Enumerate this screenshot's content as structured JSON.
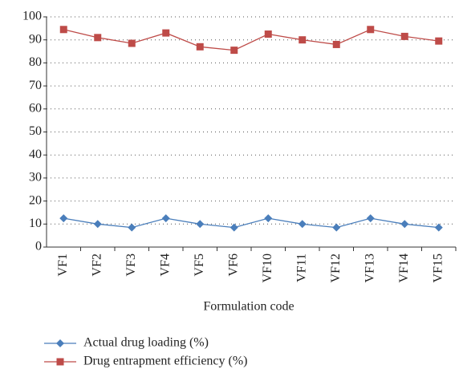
{
  "chart_data": {
    "type": "line",
    "x_label": "Formulation code",
    "categories": [
      "VF1",
      "VF2",
      "VF3",
      "VF4",
      "VF5",
      "VF6",
      "VF10",
      "VF11",
      "VF12",
      "VF13",
      "VF14",
      "VF15"
    ],
    "series": [
      {
        "name": "Actual drug loading (%)",
        "color": "#4a7ebb",
        "marker": "diamond",
        "values": [
          12.5,
          10,
          8.5,
          12.5,
          10,
          8.5,
          12.5,
          10,
          8.5,
          12.5,
          10,
          8.5
        ]
      },
      {
        "name": "Drug entrapment efficiency (%)",
        "color": "#be4b48",
        "marker": "square",
        "values": [
          94.5,
          91,
          88.5,
          93,
          87,
          85.5,
          92.5,
          90,
          88,
          94.5,
          91.5,
          89.5
        ]
      }
    ],
    "ylim": [
      0,
      100
    ],
    "yticks": [
      0,
      10,
      20,
      30,
      40,
      50,
      60,
      70,
      80,
      90,
      100
    ],
    "grid": true,
    "legend": "bottom"
  }
}
